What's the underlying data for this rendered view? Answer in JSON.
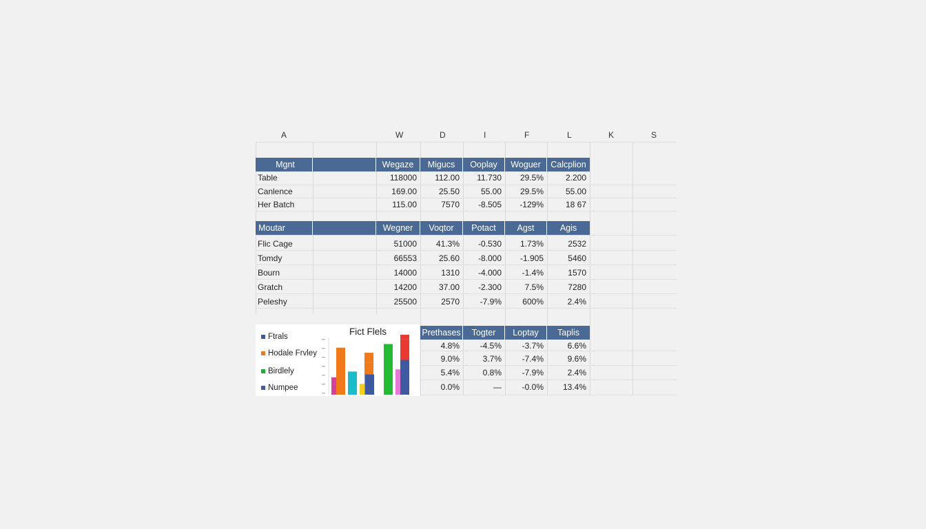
{
  "columns": [
    "A",
    "W",
    "D",
    "I",
    "F",
    "L",
    "K",
    "S"
  ],
  "table1": {
    "headers": [
      "Mgnt",
      "Wegaze",
      "Migucs",
      "Ooplay",
      "Woguer",
      "Calcplion"
    ],
    "rows": [
      {
        "label": "Table",
        "values": [
          "118000",
          "112.00",
          "11.730",
          "29.5%",
          "2.200"
        ]
      },
      {
        "label": "Canlence",
        "values": [
          "169.00",
          "25.50",
          "55.00",
          "29.5%",
          "55.00"
        ]
      },
      {
        "label": "Her Batch",
        "values": [
          "115.00",
          "7570",
          "-8.505",
          "-129%",
          "18 67"
        ]
      }
    ]
  },
  "table2": {
    "headers": [
      "Moutar",
      "Wegner",
      "Voqtor",
      "Potact",
      "Agst",
      "Agis"
    ],
    "rows": [
      {
        "label": "Flic Cage",
        "values": [
          "51000",
          "41.3%",
          "-0.530",
          "1.73%",
          "2532"
        ]
      },
      {
        "label": "Tomdy",
        "values": [
          "66553",
          "25.60",
          "-8.000",
          "-1.905",
          "5460"
        ]
      },
      {
        "label": "Bourn",
        "values": [
          "14000",
          "1310",
          "-4.000",
          "-1.4%",
          "1570"
        ]
      },
      {
        "label": "Gratch",
        "values": [
          "14200",
          "37.00",
          "-2.300",
          "7.5%",
          "7280"
        ]
      },
      {
        "label": "Peleshy",
        "values": [
          "25500",
          "2570",
          "-7.9%",
          "600%",
          "2.4%"
        ]
      }
    ]
  },
  "table3": {
    "headers": [
      "Prethases",
      "Togter",
      "Loptay",
      "Taplis"
    ],
    "rows": [
      [
        "4.8%",
        "-4.5%",
        "-3.7%",
        "6.6%"
      ],
      [
        "9.0%",
        "3.7%",
        "-7.4%",
        "9.6%"
      ],
      [
        "5.4%",
        "0.8%",
        "-7.9%",
        "2.4%"
      ],
      [
        "0.0%",
        "—",
        "-0.0%",
        "13.4%"
      ]
    ]
  },
  "chart": {
    "title": "Fict Flels",
    "legend": [
      {
        "name": "Ftrals",
        "color": "#3d5a99"
      },
      {
        "name": "Hodale Frvley",
        "color": "#f07a1a"
      },
      {
        "name": "Birdlely",
        "color": "#22aa33"
      },
      {
        "name": "Numpee",
        "color": "#4a5a9a"
      }
    ]
  },
  "chart_data": {
    "type": "bar",
    "title": "Fict Flels",
    "series_colors": [
      "#d83f9a",
      "#f07a1a",
      "#1cbcc8",
      "#f2d020",
      "#f07a1a",
      "#3d5aa0",
      "#22bb33",
      "#e878d8",
      "#e83a30",
      "#3d5aa0"
    ],
    "values": [
      24,
      65,
      32,
      15,
      44,
      28,
      70,
      35,
      77,
      48
    ],
    "stacked_tops": [
      0,
      0,
      0,
      0,
      14,
      0,
      0,
      0,
      29,
      0
    ],
    "ylim": [
      0,
      80
    ]
  }
}
